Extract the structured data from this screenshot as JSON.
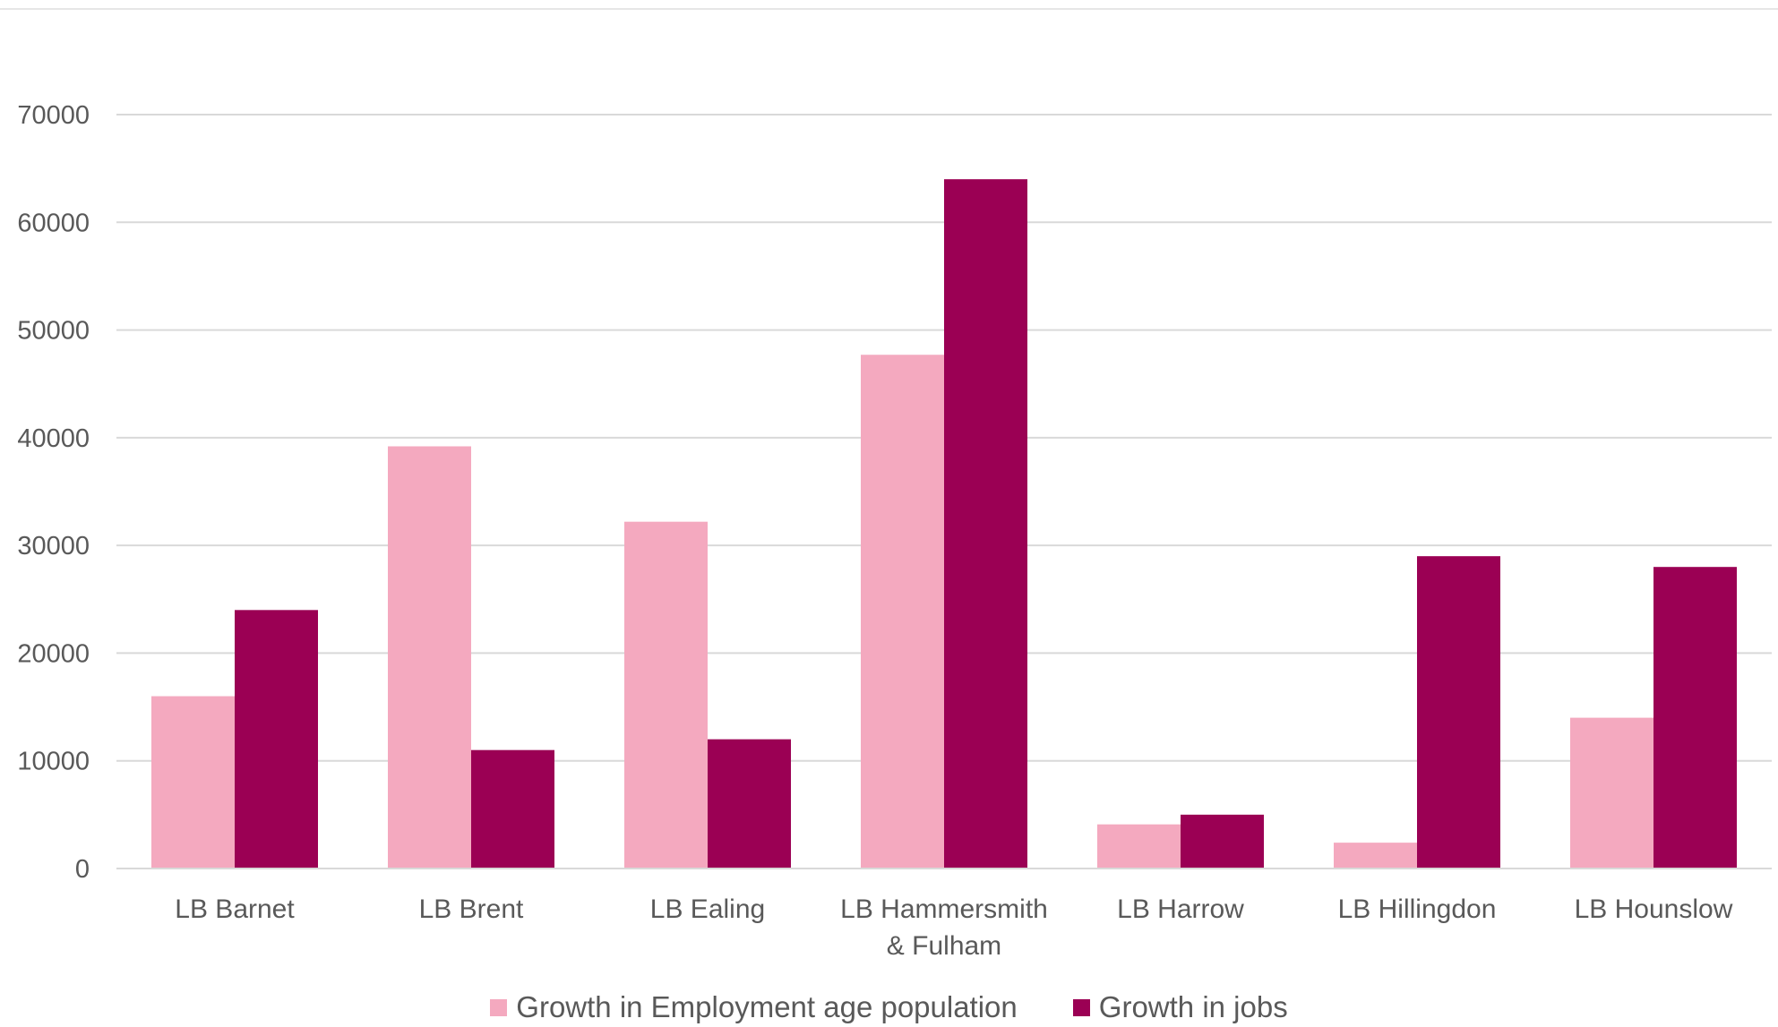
{
  "colors": {
    "series_1": "#f4a9bf",
    "series_2": "#9b0054",
    "gridline": "#d9d9d9",
    "text": "#595959"
  },
  "chart_data": {
    "type": "bar",
    "categories": [
      [
        "LB Barnet"
      ],
      [
        "LB Brent"
      ],
      [
        "LB Ealing"
      ],
      [
        "LB Hammersmith",
        "& Fulham"
      ],
      [
        "LB Harrow"
      ],
      [
        "LB Hillingdon"
      ],
      [
        "LB Hounslow"
      ]
    ],
    "series": [
      {
        "name": "Growth in Employment age population",
        "values": [
          16000,
          39200,
          32200,
          47700,
          4100,
          2400,
          14000
        ]
      },
      {
        "name": "Growth in jobs",
        "values": [
          24000,
          11000,
          12000,
          64000,
          5000,
          29000,
          28000
        ]
      }
    ],
    "y_ticks": [
      "0",
      "10000",
      "20000",
      "30000",
      "40000",
      "50000",
      "60000",
      "70000"
    ],
    "ylim": [
      0,
      70000
    ],
    "title": "",
    "xlabel": "",
    "ylabel": "",
    "grid": true,
    "legend_position": "bottom"
  }
}
